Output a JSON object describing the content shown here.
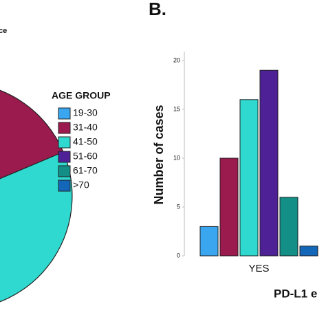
{
  "chart_data": {
    "type": "bar",
    "title": "ce",
    "panel_label": "B.",
    "x_label": "PD-L1 e",
    "y_label": "Number of cases",
    "legend_title": "AGE GROUP",
    "categories": [
      "YES"
    ],
    "series": [
      {
        "name": "19-30",
        "color": "#3ba6f0",
        "values": [
          3
        ]
      },
      {
        "name": "31-40",
        "color": "#9b1b4f",
        "values": [
          10
        ]
      },
      {
        "name": "41-50",
        "color": "#2fd9cf",
        "values": [
          16
        ]
      },
      {
        "name": "51-60",
        "color": "#4e2296",
        "values": [
          19
        ]
      },
      {
        "name": "61-70",
        "color": "#138f87",
        "values": [
          6
        ]
      },
      {
        "name": ">70",
        "color": "#1466b8",
        "values": [
          1
        ]
      }
    ],
    "ylim": [
      0,
      20
    ],
    "yticks": [
      0,
      5,
      10,
      15,
      20
    ],
    "grid": false
  }
}
